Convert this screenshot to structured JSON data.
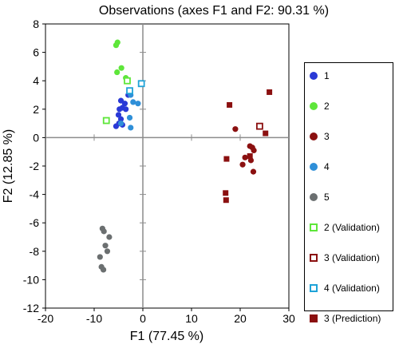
{
  "chart_data": {
    "type": "scatter",
    "title": "Observations (axes F1 and F2: 90.31 %)",
    "xlabel": "F1 (77.45 %)",
    "ylabel": "F2 (12.85 %)",
    "xlim": [
      -20,
      30
    ],
    "ylim": [
      -12,
      8
    ],
    "x_ticks": [
      -20,
      -10,
      0,
      10,
      20,
      30
    ],
    "y_ticks": [
      -12,
      -10,
      -8,
      -6,
      -4,
      -2,
      0,
      2,
      4,
      6,
      8
    ],
    "grid": false,
    "zero_lines": true,
    "legend_position": "right",
    "series": [
      {
        "name": "1",
        "marker": "circle",
        "color": "#2a39d6",
        "points": [
          [
            -5.5,
            0.8
          ],
          [
            -4.9,
            1.0
          ],
          [
            -4.5,
            1.3
          ],
          [
            -4.2,
            0.9
          ],
          [
            -5.0,
            1.6
          ],
          [
            -4.8,
            2.0
          ],
          [
            -4.2,
            2.1
          ],
          [
            -3.5,
            2.0
          ],
          [
            -4.5,
            2.6
          ],
          [
            -3.7,
            2.4
          ],
          [
            -3.0,
            3.0
          ]
        ]
      },
      {
        "name": "2",
        "marker": "circle",
        "color": "#5ee63a",
        "points": [
          [
            -5.2,
            6.7
          ],
          [
            -5.5,
            6.5
          ],
          [
            -4.4,
            4.9
          ],
          [
            -3.5,
            4.2
          ],
          [
            -5.3,
            4.6
          ]
        ]
      },
      {
        "name": "3",
        "marker": "circle",
        "color": "#8b1010",
        "points": [
          [
            19.0,
            0.6
          ],
          [
            22.0,
            -0.6
          ],
          [
            22.5,
            -0.7
          ],
          [
            22.8,
            -0.9
          ],
          [
            21.0,
            -1.4
          ],
          [
            20.5,
            -1.9
          ],
          [
            22.2,
            -1.6
          ],
          [
            22.7,
            -2.4
          ]
        ]
      },
      {
        "name": "4",
        "marker": "circle",
        "color": "#2f8fd8",
        "points": [
          [
            -2.0,
            2.5
          ],
          [
            -1.0,
            2.4
          ],
          [
            -2.5,
            3.0
          ],
          [
            -2.7,
            1.4
          ],
          [
            -2.5,
            0.7
          ],
          [
            -4.5,
            1.0
          ]
        ]
      },
      {
        "name": "5",
        "marker": "circle",
        "color": "#6b6f70",
        "points": [
          [
            -8.3,
            -6.4
          ],
          [
            -8.0,
            -6.6
          ],
          [
            -6.9,
            -7.0
          ],
          [
            -7.7,
            -7.6
          ],
          [
            -8.8,
            -8.4
          ],
          [
            -7.3,
            -8.0
          ],
          [
            -8.5,
            -9.1
          ],
          [
            -8.1,
            -9.3
          ]
        ]
      },
      {
        "name": "2 (Validation)",
        "marker": "square-open",
        "color": "#5ee63a",
        "points": [
          [
            -7.5,
            1.2
          ],
          [
            -3.2,
            4.0
          ]
        ]
      },
      {
        "name": "3 (Validation)",
        "marker": "square-open",
        "color": "#8b1010",
        "points": [
          [
            24.0,
            0.8
          ]
        ]
      },
      {
        "name": "4 (Validation)",
        "marker": "square-open",
        "color": "#1fa3d8",
        "points": [
          [
            -0.3,
            3.8
          ],
          [
            -2.7,
            3.3
          ]
        ]
      },
      {
        "name": "3 (Prediction)",
        "marker": "square",
        "color": "#8b1010",
        "points": [
          [
            17.8,
            2.3
          ],
          [
            26.0,
            3.2
          ],
          [
            25.2,
            0.3
          ],
          [
            17.2,
            -1.5
          ],
          [
            22.0,
            -1.3
          ],
          [
            17.0,
            -3.9
          ],
          [
            17.1,
            -4.4
          ]
        ]
      }
    ]
  }
}
